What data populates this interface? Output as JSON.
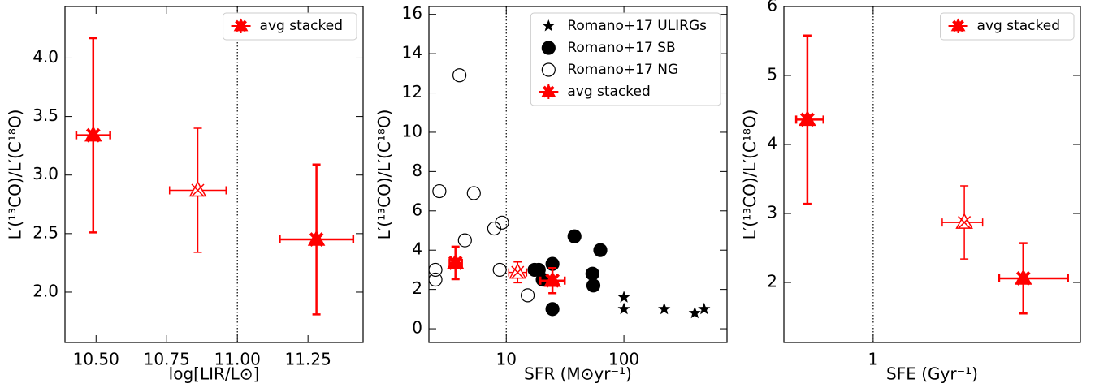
{
  "chart_data": [
    {
      "type": "scatter",
      "xlabel": "log[LIR/L⊙]",
      "ylabel": "L′(¹³CO)/L′(C¹⁸O)",
      "xlim": [
        10.39,
        11.445
      ],
      "ylim": [
        1.57,
        4.44
      ],
      "xticks": [
        {
          "value": 10.5,
          "label": "10.50"
        },
        10.75,
        {
          "value": 11,
          "label": "11.00"
        },
        11.25
      ],
      "yticks": [
        {
          "value": 2,
          "label": "2.0"
        },
        2.5,
        {
          "value": 3,
          "label": "3.0"
        },
        3.5,
        {
          "value": 4,
          "label": "4.0"
        }
      ],
      "vline": 11,
      "legend": "upper right",
      "series": [
        {
          "name": "avg stacked",
          "color": "#ff0000",
          "marker": "triangle",
          "x": [
            10.49,
            10.86,
            11.28
          ],
          "values": [
            3.34,
            2.87,
            2.45
          ],
          "xerr_minus": [
            0.06,
            0.1,
            0.13
          ],
          "xerr_plus": [
            0.06,
            0.1,
            0.13
          ],
          "yerr": [
            0.83,
            0.53,
            0.64
          ],
          "filled": [
            true,
            false,
            true
          ]
        }
      ]
    },
    {
      "type": "scatter",
      "xlabel": "SFR (M⊙yr⁻¹)",
      "ylabel": "L′(¹³CO)/L′(C¹⁸O)",
      "xlog": true,
      "xlim": [
        2.2,
        752
      ],
      "ylim": [
        -0.7,
        16.4
      ],
      "xticks": [
        10,
        100
      ],
      "yticks": [
        0,
        2,
        4,
        6,
        8,
        10,
        12,
        14,
        16
      ],
      "vline": 10,
      "legend": "upper right",
      "series": [
        {
          "name": "Romano+17 ULIRGs",
          "color": "#000000",
          "marker": "star",
          "x": [
            100,
            100,
            220,
            400,
            480
          ],
          "values": [
            1.6,
            1.0,
            1.0,
            0.8,
            1.0
          ]
        },
        {
          "name": "Romano+17 SB",
          "color": "#000000",
          "marker": "circle",
          "x": [
            17.4,
            18.9,
            20.4,
            24.7,
            38,
            54,
            55,
            63,
            24.7
          ],
          "values": [
            3.0,
            3.0,
            2.5,
            3.3,
            4.7,
            2.8,
            2.2,
            4.0,
            1.0
          ]
        },
        {
          "name": "Romano+17 NG",
          "color": "#000000",
          "marker": "circle",
          "fill": "none",
          "x": [
            2.5,
            2.5,
            2.7,
            4.0,
            4.45,
            5.3,
            7.9,
            9.2,
            8.8,
            15.2
          ],
          "values": [
            2.5,
            3.0,
            7.0,
            12.9,
            4.5,
            6.9,
            5.1,
            5.4,
            3.0,
            1.7
          ]
        },
        {
          "name": "avg stacked",
          "color": "#ff0000",
          "marker": "triangle",
          "x": [
            3.7,
            12.5,
            24.7
          ],
          "values": [
            3.35,
            2.87,
            2.45
          ],
          "xerr_minus": [
            0.4,
            2.0,
            5.2
          ],
          "xerr_plus": [
            0.5,
            2.4,
            6.7
          ],
          "yerr": [
            0.83,
            0.53,
            0.64
          ],
          "filled": [
            true,
            false,
            true
          ]
        }
      ]
    },
    {
      "type": "scatter",
      "xlabel": "SFE (Gyr⁻¹)",
      "ylabel": "L′(¹³CO)/L′(C¹⁸O)",
      "xlog": true,
      "xlim": [
        0.5,
        5.0
      ],
      "ylim": [
        1.13,
        6
      ],
      "xticks": [
        1
      ],
      "yticks": [
        2,
        3,
        4,
        5,
        6
      ],
      "vline": 1,
      "legend": "upper right",
      "series": [
        {
          "name": "avg stacked",
          "color": "#ff0000",
          "marker": "triangle",
          "x": [
            0.6,
            2.03,
            3.21
          ],
          "values": [
            4.36,
            2.87,
            2.06
          ],
          "xerr_minus": [
            0.05,
            0.32,
            0.55
          ],
          "xerr_plus": [
            0.08,
            0.31,
            1.33
          ],
          "yerr": [
            1.22,
            0.53,
            0.51
          ],
          "filled": [
            true,
            false,
            true
          ]
        }
      ]
    }
  ]
}
